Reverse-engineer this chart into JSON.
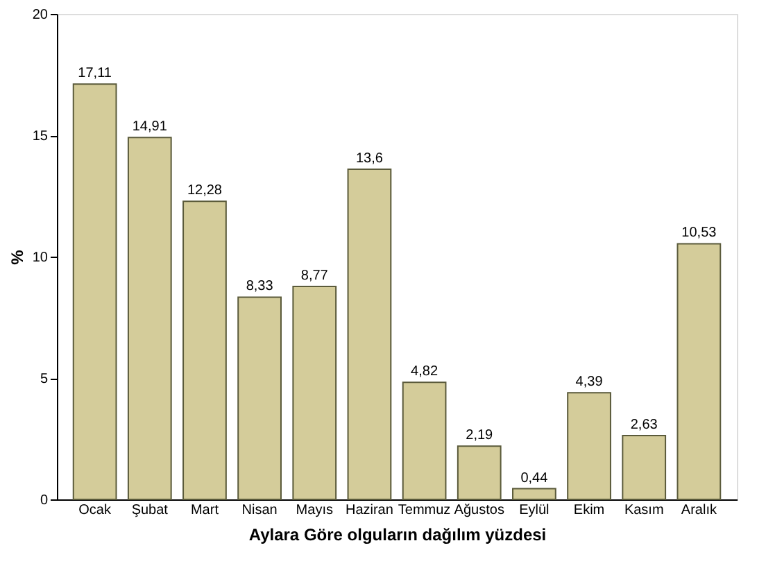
{
  "chart_data": {
    "type": "bar",
    "xlabel": "Aylara Göre olguların dağılım yüzdesi",
    "ylabel": "%",
    "categories": [
      "Ocak",
      "Şubat",
      "Mart",
      "Nisan",
      "Mayıs",
      "Haziran",
      "Temmuz",
      "Ağustos",
      "Eylül",
      "Ekim",
      "Kasım",
      "Aralık"
    ],
    "values": [
      17.11,
      14.91,
      12.28,
      8.33,
      8.77,
      13.6,
      4.82,
      2.19,
      0.44,
      4.39,
      2.63,
      10.53
    ],
    "value_labels": [
      "17,11",
      "14,91",
      "12,28",
      "8,33",
      "8,77",
      "13,6",
      "4,82",
      "2,19",
      "0,44",
      "4,39",
      "2,63",
      "10,53"
    ],
    "color": "#d4cc9a",
    "ylim": [
      0,
      20
    ],
    "yticks": [
      0,
      5,
      10,
      15,
      20
    ],
    "grid": false
  }
}
